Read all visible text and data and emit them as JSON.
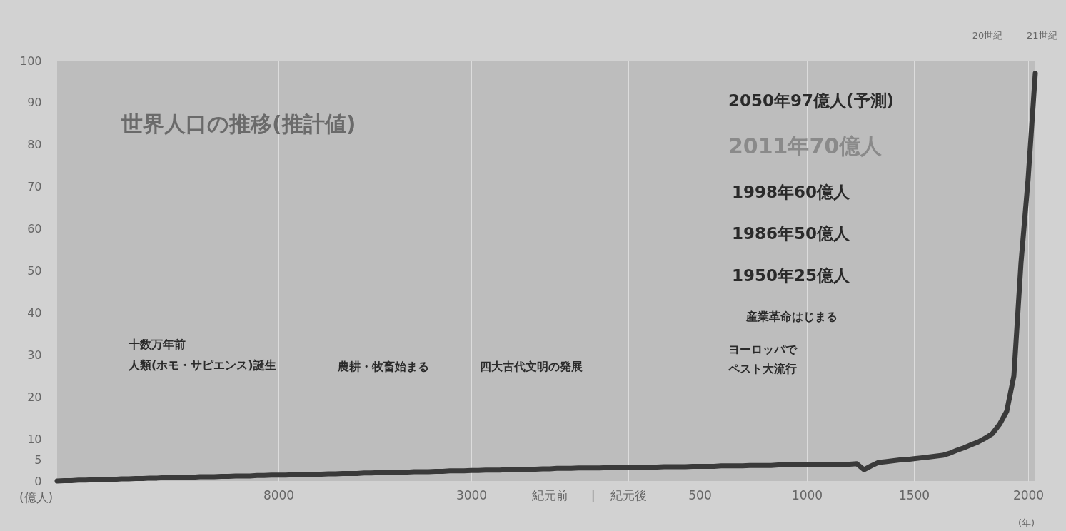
{
  "chart_data": {
    "type": "line",
    "title": "世界人口の推移(推計値)",
    "ylabel": "(億人)",
    "xlabel": "(年)",
    "categories": [
      null,
      null,
      null,
      null,
      null,
      null,
      null,
      null,
      null,
      null,
      null,
      null,
      null,
      null,
      null,
      null,
      null,
      null,
      null,
      null,
      null,
      null,
      null,
      null,
      null,
      null,
      null,
      null,
      null,
      null,
      null,
      "8000",
      null,
      null,
      null,
      null,
      null,
      null,
      null,
      null,
      null,
      null,
      null,
      null,
      null,
      null,
      null,
      null,
      null,
      null,
      null,
      null,
      null,
      null,
      null,
      null,
      null,
      null,
      "3000",
      null,
      null,
      null,
      null,
      null,
      null,
      null,
      null,
      null,
      null,
      "紀元前",
      null,
      null,
      null,
      null,
      null,
      "|",
      null,
      null,
      null,
      null,
      "紀元後",
      null,
      null,
      null,
      null,
      null,
      null,
      null,
      null,
      null,
      "500",
      null,
      null,
      null,
      null,
      null,
      null,
      null,
      null,
      null,
      null,
      null,
      null,
      null,
      null,
      "1000",
      null,
      null,
      null,
      null,
      null,
      null,
      null,
      null,
      null,
      null,
      null,
      null,
      null,
      null,
      "1500",
      null,
      null,
      null,
      null,
      null,
      null,
      null,
      null,
      null,
      null,
      null,
      null,
      null,
      null,
      null,
      "2000",
      null
    ],
    "series": [
      {
        "color": "#3a3a3a",
        "values": [
          0,
          0.1,
          0.1,
          0.2,
          0.2,
          0.3,
          0.3,
          0.4,
          0.4,
          0.5,
          0.5,
          0.6,
          0.6,
          0.7,
          0.7,
          0.8,
          0.8,
          0.8,
          0.9,
          0.9,
          1.0,
          1.0,
          1.0,
          1.1,
          1.1,
          1.2,
          1.2,
          1.2,
          1.3,
          1.3,
          1.4,
          1.4,
          1.4,
          1.5,
          1.5,
          1.6,
          1.6,
          1.6,
          1.7,
          1.7,
          1.8,
          1.8,
          1.8,
          1.9,
          1.9,
          2.0,
          2.0,
          2.0,
          2.1,
          2.1,
          2.2,
          2.2,
          2.2,
          2.3,
          2.3,
          2.4,
          2.4,
          2.4,
          2.5,
          2.5,
          2.6,
          2.6,
          2.6,
          2.7,
          2.7,
          2.8,
          2.8,
          2.8,
          2.9,
          2.9,
          3.0,
          3.0,
          3.0,
          3.1,
          3.1,
          3.1,
          3.1,
          3.2,
          3.2,
          3.2,
          3.2,
          3.3,
          3.3,
          3.3,
          3.3,
          3.4,
          3.4,
          3.4,
          3.4,
          3.5,
          3.5,
          3.5,
          3.5,
          3.6,
          3.6,
          3.6,
          3.6,
          3.7,
          3.7,
          3.7,
          3.7,
          3.8,
          3.8,
          3.8,
          3.8,
          3.9,
          3.9,
          3.9,
          3.9,
          4.0,
          4.0,
          4.0,
          4.1,
          2.7,
          3.6,
          4.4,
          4.6,
          4.8,
          5.0,
          5.1,
          5.3,
          5.5,
          5.7,
          5.9,
          6.1,
          6.6,
          7.3,
          7.9,
          8.6,
          9.3,
          10.2,
          11.3,
          13.5,
          16.6,
          25,
          52,
          72,
          97
        ]
      }
    ],
    "ylim": [
      0,
      100
    ],
    "yticks": [
      0,
      5,
      10,
      20,
      30,
      40,
      50,
      60,
      70,
      80,
      90,
      100
    ],
    "grid": "x",
    "annotations": [
      "20世紀",
      "21世紀",
      "2050年97億人(予測)",
      "2011年70億人",
      "1998年60億人",
      "1986年50億人",
      "1950年25億人",
      "産業革命はじまる",
      "ヨーロッパで",
      "ペスト大流行",
      "十数万年前",
      "人類(ホモ・サピエンス)誕生",
      "農耕・牧畜始まる",
      "四大古代文明の発展"
    ]
  }
}
